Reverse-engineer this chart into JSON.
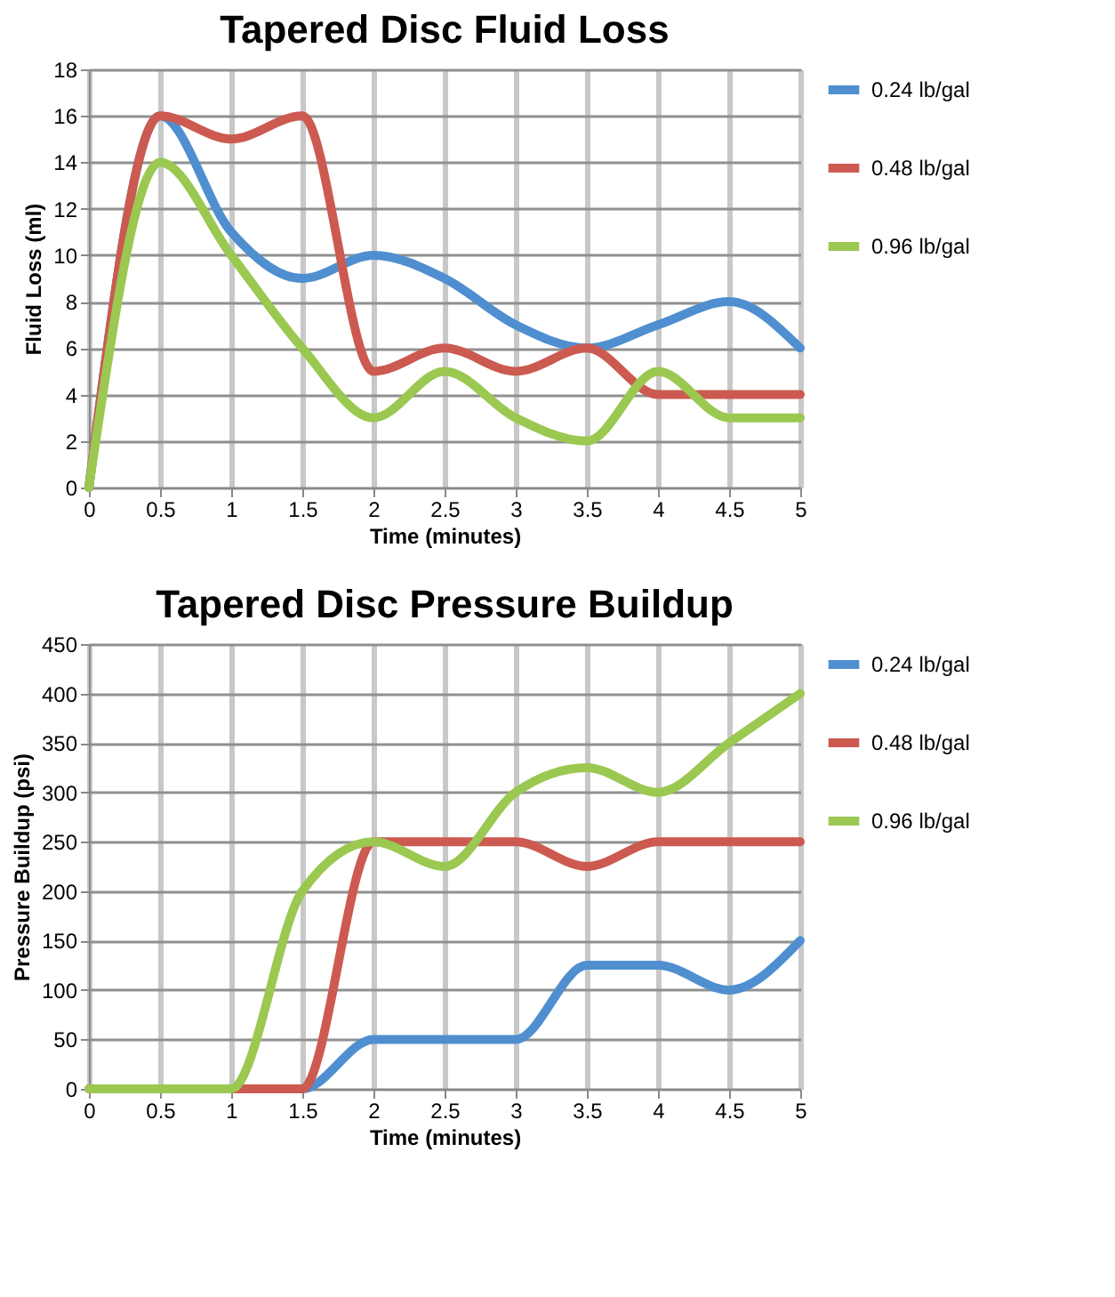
{
  "chart_data": [
    {
      "type": "line",
      "title": "Tapered Disc Fluid Loss",
      "xlabel": "Time (minutes)",
      "ylabel": "Fluid Loss (ml)",
      "x": [
        0,
        0.5,
        1,
        1.5,
        2,
        2.5,
        3,
        3.5,
        4,
        4.5,
        5
      ],
      "xlim": [
        0,
        5
      ],
      "xticks": [
        0,
        0.5,
        1,
        1.5,
        2,
        2.5,
        3,
        3.5,
        4,
        4.5,
        5
      ],
      "ylim": [
        0,
        18
      ],
      "yticks": [
        0,
        2,
        4,
        6,
        8,
        10,
        12,
        14,
        16,
        18
      ],
      "grid": true,
      "legend": "right",
      "marker": "none",
      "line_style": "solid",
      "series": [
        {
          "name": "0.24 lb/gal",
          "color": "#4f8fd0",
          "values": [
            0,
            16,
            11,
            9,
            10,
            9,
            7,
            6,
            7,
            8,
            6
          ]
        },
        {
          "name": "0.48 lb/gal",
          "color": "#cc5a50",
          "values": [
            0,
            16,
            15,
            16,
            5,
            6,
            5,
            6,
            4,
            4,
            4
          ]
        },
        {
          "name": "0.96 lb/gal",
          "color": "#9bc850",
          "values": [
            0,
            14,
            10,
            6,
            3,
            5,
            3,
            2,
            5,
            3,
            3
          ]
        }
      ]
    },
    {
      "type": "line",
      "title": "Tapered Disc Pressure Buildup",
      "xlabel": "Time (minutes)",
      "ylabel": "Pressure Buildup (psi)",
      "x": [
        0,
        0.5,
        1,
        1.5,
        2,
        2.5,
        3,
        3.5,
        4,
        4.5,
        5
      ],
      "xlim": [
        0,
        5
      ],
      "xticks": [
        0,
        0.5,
        1,
        1.5,
        2,
        2.5,
        3,
        3.5,
        4,
        4.5,
        5
      ],
      "ylim": [
        0,
        450
      ],
      "yticks": [
        0,
        50,
        100,
        150,
        200,
        250,
        300,
        350,
        400,
        450
      ],
      "grid": true,
      "legend": "right",
      "marker": "none",
      "line_style": "solid",
      "series": [
        {
          "name": "0.24 lb/gal",
          "color": "#4f8fd0",
          "values": [
            null,
            null,
            0,
            0,
            50,
            50,
            50,
            125,
            125,
            100,
            150
          ]
        },
        {
          "name": "0.48 lb/gal",
          "color": "#cc5a50",
          "values": [
            0,
            0,
            0,
            0,
            250,
            250,
            250,
            225,
            250,
            250,
            250
          ]
        },
        {
          "name": "0.96 lb/gal",
          "color": "#9bc850",
          "values": [
            0,
            0,
            0,
            200,
            250,
            225,
            300,
            325,
            300,
            350,
            400
          ]
        }
      ]
    }
  ]
}
